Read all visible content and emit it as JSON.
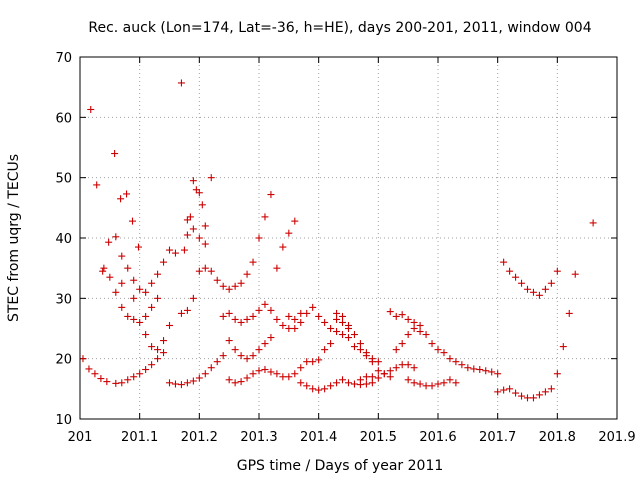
{
  "chart_data": {
    "type": "scatter",
    "title": "Rec. auck (Lon=174, Lat=-36, h=HE), days 200-201, 2011, window 004",
    "xlabel": "GPS time / Days of year 2011",
    "ylabel": "STEC from uqrg / TECUs",
    "xlim": [
      201,
      201.9
    ],
    "ylim": [
      10,
      70
    ],
    "xticks": [
      201,
      201.1,
      201.2,
      201.3,
      201.4,
      201.5,
      201.6,
      201.7,
      201.8,
      201.9
    ],
    "xtick_labels": [
      "201",
      "201.1",
      "201.2",
      "201.3",
      "201.4",
      "201.5",
      "201.6",
      "201.7",
      "201.8",
      "201.9"
    ],
    "yticks": [
      10,
      20,
      30,
      40,
      50,
      60,
      70
    ],
    "ytick_labels": [
      "10",
      "20",
      "30",
      "40",
      "50",
      "60",
      "70"
    ],
    "grid": true,
    "series": [
      {
        "name": "STEC",
        "color": "#cc0000",
        "marker": "+",
        "points": [
          [
            201.005,
            20.0
          ],
          [
            201.015,
            18.3
          ],
          [
            201.025,
            17.5
          ],
          [
            201.035,
            16.7
          ],
          [
            201.045,
            16.2
          ],
          [
            201.06,
            15.9
          ],
          [
            201.07,
            16.0
          ],
          [
            201.08,
            16.5
          ],
          [
            201.09,
            17.0
          ],
          [
            201.1,
            17.5
          ],
          [
            201.11,
            18.2
          ],
          [
            201.12,
            19.0
          ],
          [
            201.13,
            20.0
          ],
          [
            201.14,
            21.0
          ],
          [
            201.018,
            61.3
          ],
          [
            201.028,
            48.8
          ],
          [
            201.048,
            39.3
          ],
          [
            201.058,
            54.0
          ],
          [
            201.038,
            34.5
          ],
          [
            201.068,
            46.5
          ],
          [
            201.078,
            47.3
          ],
          [
            201.088,
            42.8
          ],
          [
            201.098,
            38.5
          ],
          [
            201.04,
            35.0
          ],
          [
            201.05,
            33.5
          ],
          [
            201.06,
            31.0
          ],
          [
            201.07,
            28.5
          ],
          [
            201.08,
            27.0
          ],
          [
            201.09,
            26.5
          ],
          [
            201.1,
            26.0
          ],
          [
            201.11,
            27.0
          ],
          [
            201.12,
            28.5
          ],
          [
            201.13,
            30.0
          ],
          [
            201.06,
            40.2
          ],
          [
            201.07,
            37.0
          ],
          [
            201.08,
            35.0
          ],
          [
            201.09,
            33.0
          ],
          [
            201.1,
            31.5
          ],
          [
            201.11,
            31.0
          ],
          [
            201.12,
            32.5
          ],
          [
            201.13,
            34.0
          ],
          [
            201.14,
            36.0
          ],
          [
            201.15,
            38.0
          ],
          [
            201.07,
            32.5
          ],
          [
            201.09,
            30.0
          ],
          [
            201.11,
            24.0
          ],
          [
            201.12,
            22.0
          ],
          [
            201.13,
            21.5
          ],
          [
            201.14,
            23.0
          ],
          [
            201.15,
            25.5
          ],
          [
            201.15,
            16.0
          ],
          [
            201.16,
            15.8
          ],
          [
            201.17,
            15.7
          ],
          [
            201.18,
            16.0
          ],
          [
            201.19,
            16.3
          ],
          [
            201.2,
            16.8
          ],
          [
            201.21,
            17.5
          ],
          [
            201.22,
            18.5
          ],
          [
            201.23,
            19.5
          ],
          [
            201.24,
            20.5
          ],
          [
            201.17,
            65.7
          ],
          [
            201.185,
            43.5
          ],
          [
            201.19,
            49.5
          ],
          [
            201.195,
            48.0
          ],
          [
            201.2,
            47.5
          ],
          [
            201.205,
            45.5
          ],
          [
            201.21,
            42.0
          ],
          [
            201.22,
            50.0
          ],
          [
            201.18,
            43.0
          ],
          [
            201.18,
            40.5
          ],
          [
            201.19,
            41.5
          ],
          [
            201.2,
            40.0
          ],
          [
            201.21,
            39.0
          ],
          [
            201.175,
            38.0
          ],
          [
            201.16,
            37.5
          ],
          [
            201.17,
            27.5
          ],
          [
            201.18,
            28.0
          ],
          [
            201.19,
            30.0
          ],
          [
            201.2,
            34.5
          ],
          [
            201.21,
            35.0
          ],
          [
            201.22,
            34.5
          ],
          [
            201.23,
            33.0
          ],
          [
            201.24,
            32.0
          ],
          [
            201.25,
            31.5
          ],
          [
            201.26,
            32.0
          ],
          [
            201.27,
            32.5
          ],
          [
            201.28,
            34.0
          ],
          [
            201.29,
            36.0
          ],
          [
            201.3,
            40.0
          ],
          [
            201.31,
            43.5
          ],
          [
            201.32,
            47.2
          ],
          [
            201.24,
            27.0
          ],
          [
            201.25,
            27.5
          ],
          [
            201.26,
            26.5
          ],
          [
            201.27,
            26.0
          ],
          [
            201.28,
            26.5
          ],
          [
            201.29,
            27.0
          ],
          [
            201.3,
            28.0
          ],
          [
            201.31,
            29.0
          ],
          [
            201.32,
            28.0
          ],
          [
            201.33,
            26.5
          ],
          [
            201.34,
            25.5
          ],
          [
            201.35,
            25.0
          ],
          [
            201.36,
            26.5
          ],
          [
            201.37,
            27.5
          ],
          [
            201.25,
            23.0
          ],
          [
            201.26,
            21.5
          ],
          [
            201.27,
            20.5
          ],
          [
            201.28,
            20.0
          ],
          [
            201.29,
            20.5
          ],
          [
            201.3,
            21.5
          ],
          [
            201.31,
            22.5
          ],
          [
            201.32,
            23.5
          ],
          [
            201.25,
            16.5
          ],
          [
            201.26,
            16.0
          ],
          [
            201.27,
            16.2
          ],
          [
            201.28,
            16.8
          ],
          [
            201.29,
            17.5
          ],
          [
            201.3,
            18.0
          ],
          [
            201.31,
            18.2
          ],
          [
            201.32,
            17.8
          ],
          [
            201.33,
            17.5
          ],
          [
            201.34,
            17.0
          ],
          [
            201.35,
            17.0
          ],
          [
            201.36,
            17.5
          ],
          [
            201.37,
            18.5
          ],
          [
            201.38,
            19.5
          ],
          [
            201.33,
            35.0
          ],
          [
            201.34,
            38.5
          ],
          [
            201.35,
            40.8
          ],
          [
            201.36,
            42.8
          ],
          [
            201.35,
            27.0
          ],
          [
            201.36,
            25.0
          ],
          [
            201.37,
            26.0
          ],
          [
            201.38,
            27.5
          ],
          [
            201.39,
            28.5
          ],
          [
            201.4,
            27.0
          ],
          [
            201.41,
            26.0
          ],
          [
            201.42,
            25.0
          ],
          [
            201.43,
            24.5
          ],
          [
            201.44,
            24.0
          ],
          [
            201.45,
            23.5
          ],
          [
            201.37,
            16.0
          ],
          [
            201.38,
            15.5
          ],
          [
            201.39,
            15.0
          ],
          [
            201.4,
            14.8
          ],
          [
            201.41,
            15.0
          ],
          [
            201.42,
            15.5
          ],
          [
            201.43,
            16.0
          ],
          [
            201.44,
            16.5
          ],
          [
            201.45,
            16.0
          ],
          [
            201.46,
            15.8
          ],
          [
            201.47,
            15.7
          ],
          [
            201.48,
            15.8
          ],
          [
            201.49,
            16.0
          ],
          [
            201.39,
            19.5
          ],
          [
            201.4,
            19.8
          ],
          [
            201.41,
            21.5
          ],
          [
            201.42,
            22.5
          ],
          [
            201.43,
            26.5
          ],
          [
            201.44,
            26.0
          ],
          [
            201.45,
            25.0
          ],
          [
            201.46,
            24.0
          ],
          [
            201.47,
            22.5
          ],
          [
            201.48,
            21.0
          ],
          [
            201.49,
            20.0
          ],
          [
            201.5,
            19.5
          ],
          [
            201.43,
            27.5
          ],
          [
            201.44,
            27.0
          ],
          [
            201.45,
            25.5
          ],
          [
            201.46,
            22.0
          ],
          [
            201.47,
            21.5
          ],
          [
            201.48,
            20.5
          ],
          [
            201.49,
            19.5
          ],
          [
            201.5,
            18.0
          ],
          [
            201.51,
            17.5
          ],
          [
            201.52,
            17.0
          ],
          [
            201.47,
            16.5
          ],
          [
            201.48,
            17.0
          ],
          [
            201.49,
            17.0
          ],
          [
            201.5,
            16.8
          ],
          [
            201.51,
            17.5
          ],
          [
            201.52,
            18.0
          ],
          [
            201.53,
            18.5
          ],
          [
            201.54,
            19.0
          ],
          [
            201.55,
            19.0
          ],
          [
            201.56,
            18.5
          ],
          [
            201.52,
            27.8
          ],
          [
            201.53,
            27.0
          ],
          [
            201.54,
            27.3
          ],
          [
            201.55,
            26.5
          ],
          [
            201.56,
            26.0
          ],
          [
            201.57,
            25.5
          ],
          [
            201.58,
            24.0
          ],
          [
            201.59,
            22.5
          ],
          [
            201.6,
            21.5
          ],
          [
            201.61,
            21.0
          ],
          [
            201.62,
            20.0
          ],
          [
            201.63,
            19.5
          ],
          [
            201.64,
            19.0
          ],
          [
            201.65,
            18.5
          ],
          [
            201.66,
            18.3
          ],
          [
            201.67,
            18.2
          ],
          [
            201.68,
            18.0
          ],
          [
            201.69,
            17.8
          ],
          [
            201.7,
            17.5
          ],
          [
            201.53,
            21.5
          ],
          [
            201.54,
            22.5
          ],
          [
            201.55,
            24.0
          ],
          [
            201.56,
            25.0
          ],
          [
            201.57,
            24.5
          ],
          [
            201.55,
            16.5
          ],
          [
            201.56,
            16.0
          ],
          [
            201.57,
            15.8
          ],
          [
            201.58,
            15.5
          ],
          [
            201.59,
            15.5
          ],
          [
            201.6,
            15.8
          ],
          [
            201.61,
            16.0
          ],
          [
            201.62,
            16.5
          ],
          [
            201.63,
            16.0
          ],
          [
            201.7,
            14.5
          ],
          [
            201.71,
            14.8
          ],
          [
            201.72,
            15.0
          ],
          [
            201.73,
            14.3
          ],
          [
            201.74,
            13.8
          ],
          [
            201.75,
            13.5
          ],
          [
            201.76,
            13.5
          ],
          [
            201.77,
            14.0
          ],
          [
            201.78,
            14.5
          ],
          [
            201.79,
            15.0
          ],
          [
            201.71,
            36.0
          ],
          [
            201.72,
            34.5
          ],
          [
            201.73,
            33.5
          ],
          [
            201.74,
            32.5
          ],
          [
            201.75,
            31.5
          ],
          [
            201.76,
            31.0
          ],
          [
            201.77,
            30.5
          ],
          [
            201.78,
            31.5
          ],
          [
            201.79,
            32.5
          ],
          [
            201.8,
            34.5
          ],
          [
            201.8,
            17.5
          ],
          [
            201.81,
            22.0
          ],
          [
            201.82,
            27.5
          ],
          [
            201.83,
            34.0
          ],
          [
            201.86,
            42.5
          ]
        ]
      }
    ]
  }
}
